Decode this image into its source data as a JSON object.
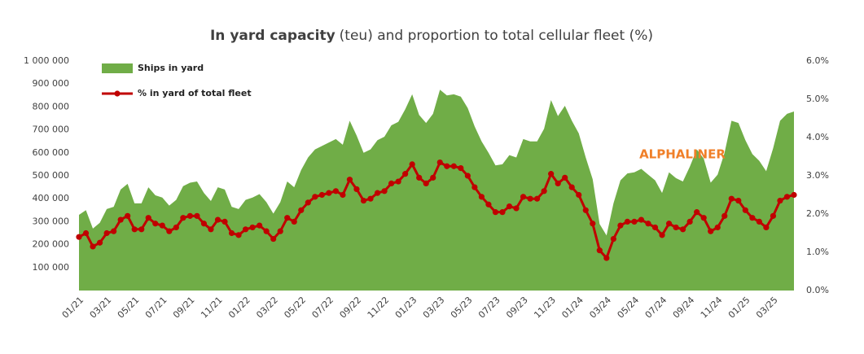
{
  "chart_data": {
    "type": "area_line",
    "title": [
      "In yard capacity",
      "(teu) and proportion to total cellular fleet (%)"
    ],
    "annotation": "ALPHALINER",
    "categories": [
      "01/21",
      null,
      null,
      null,
      "03/21",
      null,
      null,
      null,
      "05/21",
      null,
      null,
      null,
      "07/21",
      null,
      null,
      null,
      "09/21",
      null,
      null,
      null,
      "11/21",
      null,
      null,
      null,
      "01/22",
      null,
      null,
      null,
      "03/22",
      null,
      null,
      null,
      "05/22",
      null,
      null,
      null,
      "07/22",
      null,
      null,
      null,
      "09/22",
      null,
      null,
      null,
      "11/22",
      null,
      null,
      null,
      "01/23",
      null,
      null,
      null,
      "03/23",
      null,
      null,
      null,
      "05/23",
      null,
      null,
      null,
      "07/23",
      null,
      null,
      null,
      "09/23",
      null,
      null,
      null,
      "11/23",
      null,
      null,
      null,
      "01/24",
      null,
      null,
      null,
      "03/24",
      null,
      null,
      null,
      "05/24",
      null,
      null,
      null,
      "07/24",
      null,
      null,
      null,
      "09/24",
      null,
      null,
      null,
      "11/24",
      null,
      null,
      null,
      "01/25",
      null,
      null,
      null,
      "03/25",
      null,
      null,
      null
    ],
    "series": [
      {
        "name": "Ships in yard",
        "color": "#70ad47",
        "kind": "area",
        "axis": "y",
        "values": [
          330000,
          350000,
          270000,
          295000,
          355000,
          365000,
          440000,
          465000,
          380000,
          380000,
          450000,
          415000,
          405000,
          370000,
          395000,
          455000,
          470000,
          475000,
          425000,
          390000,
          450000,
          440000,
          365000,
          355000,
          395000,
          405000,
          420000,
          385000,
          335000,
          385000,
          475000,
          450000,
          525000,
          580000,
          615000,
          630000,
          645000,
          660000,
          635000,
          740000,
          675000,
          600000,
          615000,
          655000,
          670000,
          720000,
          735000,
          790000,
          855000,
          765000,
          730000,
          770000,
          875000,
          850000,
          855000,
          845000,
          795000,
          715000,
          650000,
          600000,
          545000,
          550000,
          590000,
          580000,
          660000,
          650000,
          650000,
          705000,
          830000,
          760000,
          805000,
          740000,
          685000,
          580000,
          485000,
          290000,
          240000,
          380000,
          480000,
          510000,
          515000,
          530000,
          505000,
          480000,
          425000,
          515000,
          490000,
          475000,
          540000,
          615000,
          575000,
          470000,
          505000,
          600000,
          740000,
          730000,
          655000,
          595000,
          565000,
          520000,
          620000,
          740000,
          770000,
          780000
        ]
      },
      {
        "name": "% in yard of total fleet",
        "color": "#c00000",
        "kind": "line",
        "axis": "y2",
        "values": [
          1.4,
          1.5,
          1.15,
          1.25,
          1.5,
          1.55,
          1.85,
          1.95,
          1.6,
          1.6,
          1.9,
          1.75,
          1.7,
          1.55,
          1.65,
          1.9,
          1.95,
          1.95,
          1.75,
          1.6,
          1.85,
          1.8,
          1.5,
          1.45,
          1.6,
          1.65,
          1.7,
          1.55,
          1.35,
          1.55,
          1.9,
          1.8,
          2.1,
          2.3,
          2.45,
          2.5,
          2.55,
          2.6,
          2.5,
          2.9,
          2.65,
          2.35,
          2.4,
          2.55,
          2.6,
          2.8,
          2.85,
          3.05,
          3.3,
          2.95,
          2.8,
          2.95,
          3.35,
          3.25,
          3.25,
          3.2,
          3.0,
          2.7,
          2.45,
          2.25,
          2.05,
          2.05,
          2.2,
          2.15,
          2.45,
          2.4,
          2.4,
          2.6,
          3.05,
          2.8,
          2.95,
          2.7,
          2.5,
          2.1,
          1.75,
          1.05,
          0.85,
          1.35,
          1.7,
          1.8,
          1.8,
          1.85,
          1.75,
          1.65,
          1.45,
          1.75,
          1.65,
          1.6,
          1.8,
          2.05,
          1.9,
          1.55,
          1.65,
          1.95,
          2.4,
          2.35,
          2.1,
          1.9,
          1.8,
          1.65,
          1.95,
          2.35,
          2.45,
          2.5
        ]
      }
    ],
    "ylim": [
      0,
      1000000
    ],
    "yticks": [
      {
        "value": 100000,
        "label": "100 000"
      },
      {
        "value": 200000,
        "label": "200 000"
      },
      {
        "value": 300000,
        "label": "300 000"
      },
      {
        "value": 400000,
        "label": "400 000"
      },
      {
        "value": 500000,
        "label": "500 000"
      },
      {
        "value": 600000,
        "label": "600 000"
      },
      {
        "value": 700000,
        "label": "700 000"
      },
      {
        "value": 800000,
        "label": "800 000"
      },
      {
        "value": 900000,
        "label": "900 000"
      },
      {
        "value": 1000000,
        "label": "1 000 000"
      }
    ],
    "y2lim": [
      0,
      6
    ],
    "y2ticks": [
      {
        "value": 0,
        "label": "0.0%"
      },
      {
        "value": 1,
        "label": "1.0%"
      },
      {
        "value": 2,
        "label": "2.0%"
      },
      {
        "value": 3,
        "label": "3.0%"
      },
      {
        "value": 4,
        "label": "4.0%"
      },
      {
        "value": 5,
        "label": "5.0%"
      },
      {
        "value": 6,
        "label": "6.0%"
      }
    ],
    "legend": "top-left",
    "grid": false
  }
}
